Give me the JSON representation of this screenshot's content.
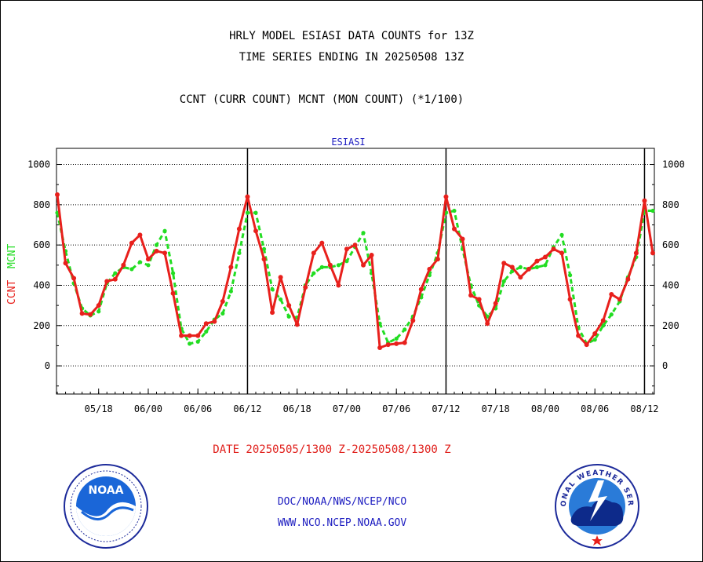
{
  "header": {
    "title_line1": "HRLY MODEL ESIASI DATA COUNTS for 13Z",
    "title_line2": "TIME SERIES ENDING IN 20250508 13Z",
    "subtitle": "CCNT (CURR COUNT) MCNT (MON COUNT) (*1/100)"
  },
  "footer": {
    "date_range": "DATE 20250505/1300 Z-20250508/1300 Z",
    "org_path": "DOC/NOAA/NWS/NCEP/NCO",
    "website": "WWW.NCO.NCEP.NOAA.GOV"
  },
  "logos": {
    "noaa_text": "NOAA",
    "nws_text": "NATIONAL WEATHER SERVICE"
  },
  "colors": {
    "ccnt": "#e8201c",
    "mcnt": "#22dd22",
    "panel_label": "#1c1cc0"
  },
  "chart_data": {
    "type": "line",
    "title": "ESIASI",
    "ylabel_ccnt": "CCNT",
    "ylabel_mcnt": "MCNT",
    "ylim": [
      -140,
      1080
    ],
    "yticks": [
      0,
      200,
      400,
      600,
      800,
      1000
    ],
    "x_tick_labels": [
      "05/18",
      "06/00",
      "06/06",
      "06/12",
      "06/18",
      "07/00",
      "07/06",
      "07/12",
      "07/18",
      "08/00",
      "08/06",
      "08/12"
    ],
    "x_tick_hours": [
      5,
      11,
      17,
      23,
      29,
      35,
      41,
      47,
      53,
      59,
      65,
      71
    ],
    "x_range_hours": [
      0,
      72
    ],
    "day_boundaries_hours": [
      23,
      47,
      71
    ],
    "grid": "horizontal-dotted",
    "series": [
      {
        "name": "CCNT",
        "values": [
          850,
          510,
          435,
          260,
          255,
          300,
          420,
          430,
          500,
          610,
          650,
          530,
          570,
          560,
          360,
          150,
          150,
          150,
          210,
          220,
          320,
          490,
          680,
          840,
          670,
          530,
          265,
          440,
          300,
          205,
          390,
          560,
          610,
          500,
          400,
          580,
          600,
          500,
          550,
          90,
          105,
          110,
          115,
          225,
          380,
          480,
          530,
          840,
          680,
          630,
          350,
          330,
          210,
          310,
          510,
          490,
          440,
          480,
          520,
          540,
          580,
          560,
          330,
          150,
          105,
          160,
          225,
          355,
          330,
          430,
          560,
          820,
          560
        ]
      },
      {
        "name": "MCNT",
        "values": [
          760,
          570,
          410,
          285,
          250,
          270,
          410,
          460,
          490,
          480,
          515,
          500,
          600,
          670,
          460,
          185,
          110,
          120,
          170,
          230,
          260,
          370,
          560,
          760,
          760,
          580,
          380,
          330,
          245,
          240,
          400,
          460,
          490,
          490,
          500,
          520,
          590,
          660,
          460,
          210,
          115,
          135,
          180,
          245,
          340,
          450,
          560,
          760,
          770,
          580,
          400,
          300,
          245,
          285,
          420,
          470,
          490,
          480,
          490,
          500,
          590,
          650,
          450,
          190,
          110,
          130,
          200,
          255,
          320,
          440,
          540,
          770,
          770
        ]
      }
    ]
  }
}
